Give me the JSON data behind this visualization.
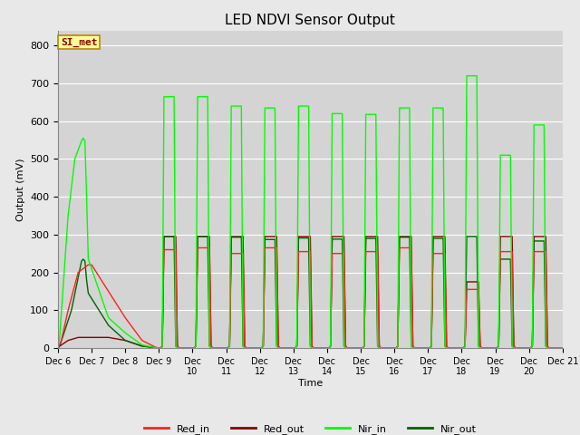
{
  "title": "LED NDVI Sensor Output",
  "xlabel": "Time",
  "ylabel": "Output (mV)",
  "ylim": [
    0,
    840
  ],
  "yticks": [
    0,
    100,
    200,
    300,
    400,
    500,
    600,
    700,
    800
  ],
  "annotation_text": "SI_met",
  "annotation_color": "#8b0000",
  "annotation_bg": "#ffff99",
  "annotation_border": "#b8860b",
  "legend_labels": [
    "Red_in",
    "Red_out",
    "Nir_in",
    "Nir_out"
  ],
  "legend_colors": [
    "#ff2020",
    "#8b0000",
    "#00ff00",
    "#006400"
  ],
  "days": [
    "Dec 6",
    "Dec 7",
    "Dec 8",
    "Dec 9",
    "Dec\n10",
    "Dec\n11",
    "Dec\n12",
    "Dec\n13",
    "Dec\n14",
    "Dec\n15",
    "Dec\n16",
    "Dec\n17",
    "Dec\n18",
    "Dec\n19",
    "Dec\n20",
    "Dec 21"
  ],
  "day_positions": [
    0,
    1,
    2,
    3,
    4,
    5,
    6,
    7,
    8,
    9,
    10,
    11,
    12,
    13,
    14,
    15
  ],
  "series": {
    "Red_in": {
      "color": "#ff2020",
      "lw": 1.0,
      "x": [
        0,
        0.1,
        0.3,
        0.6,
        0.9,
        1.0,
        1.5,
        2.0,
        2.5,
        2.9,
        3.0,
        3.05,
        3.1,
        3.15,
        3.5,
        3.55,
        3.6,
        4.05,
        4.1,
        4.15,
        4.5,
        4.55,
        4.6,
        5.05,
        5.1,
        5.15,
        5.5,
        5.55,
        5.6,
        6.05,
        6.1,
        6.15,
        6.5,
        6.55,
        6.6,
        7.05,
        7.1,
        7.15,
        7.5,
        7.55,
        7.6,
        8.05,
        8.1,
        8.15,
        8.5,
        8.55,
        8.6,
        9.05,
        9.1,
        9.15,
        9.5,
        9.55,
        9.6,
        10.05,
        10.1,
        10.15,
        10.5,
        10.55,
        10.6,
        11.05,
        11.1,
        11.15,
        11.5,
        11.55,
        11.6,
        12.05,
        12.1,
        12.15,
        12.5,
        12.55,
        12.6,
        13.05,
        13.1,
        13.15,
        13.5,
        13.55,
        13.6,
        14.05,
        14.1,
        14.15,
        14.5,
        14.55,
        14.6,
        15.0
      ],
      "y": [
        0,
        20,
        100,
        200,
        220,
        220,
        150,
        80,
        20,
        2,
        0,
        0,
        5,
        260,
        260,
        5,
        0,
        0,
        5,
        265,
        265,
        5,
        0,
        0,
        5,
        250,
        250,
        5,
        0,
        0,
        5,
        265,
        265,
        5,
        0,
        0,
        5,
        255,
        255,
        5,
        0,
        0,
        5,
        250,
        250,
        5,
        0,
        0,
        5,
        255,
        255,
        5,
        0,
        0,
        5,
        265,
        265,
        5,
        0,
        0,
        5,
        250,
        250,
        5,
        0,
        0,
        5,
        155,
        155,
        5,
        0,
        0,
        5,
        255,
        255,
        5,
        0,
        0,
        5,
        255,
        255,
        5,
        0,
        0
      ]
    },
    "Red_out": {
      "color": "#8b0000",
      "lw": 1.0,
      "x": [
        0,
        0.05,
        0.3,
        0.6,
        0.9,
        1.0,
        1.5,
        2.0,
        2.5,
        2.9,
        3.0,
        3.05,
        3.1,
        3.15,
        3.5,
        3.55,
        3.6,
        4.05,
        4.1,
        4.15,
        4.5,
        4.55,
        4.6,
        5.05,
        5.1,
        5.15,
        5.5,
        5.55,
        5.6,
        6.05,
        6.1,
        6.15,
        6.5,
        6.55,
        6.6,
        7.05,
        7.1,
        7.15,
        7.5,
        7.55,
        7.6,
        8.05,
        8.1,
        8.15,
        8.5,
        8.55,
        8.6,
        9.05,
        9.1,
        9.15,
        9.5,
        9.55,
        9.6,
        10.05,
        10.1,
        10.15,
        10.5,
        10.55,
        10.6,
        11.05,
        11.1,
        11.15,
        11.5,
        11.55,
        11.6,
        12.05,
        12.1,
        12.15,
        12.5,
        12.55,
        12.6,
        13.05,
        13.1,
        13.15,
        13.5,
        13.55,
        13.6,
        14.05,
        14.1,
        14.15,
        14.5,
        14.55,
        14.6,
        15.0
      ],
      "y": [
        0,
        5,
        20,
        28,
        28,
        28,
        28,
        20,
        5,
        1,
        0,
        0,
        5,
        295,
        295,
        5,
        0,
        0,
        5,
        295,
        295,
        5,
        0,
        0,
        5,
        295,
        295,
        5,
        0,
        0,
        5,
        295,
        295,
        5,
        0,
        0,
        5,
        295,
        295,
        5,
        0,
        0,
        5,
        295,
        295,
        5,
        0,
        0,
        5,
        295,
        295,
        5,
        0,
        0,
        5,
        295,
        295,
        5,
        0,
        0,
        5,
        295,
        295,
        5,
        0,
        0,
        5,
        175,
        175,
        5,
        0,
        0,
        5,
        295,
        295,
        5,
        0,
        0,
        5,
        295,
        295,
        5,
        0,
        0
      ]
    },
    "Nir_in": {
      "color": "#00ff00",
      "lw": 1.0,
      "x": [
        0,
        0.05,
        0.3,
        0.5,
        0.7,
        0.75,
        0.8,
        0.85,
        0.9,
        1.5,
        2.0,
        2.5,
        2.9,
        3.0,
        3.05,
        3.1,
        3.15,
        3.45,
        3.5,
        3.55,
        3.6,
        4.05,
        4.1,
        4.15,
        4.45,
        4.5,
        4.55,
        4.6,
        5.05,
        5.1,
        5.15,
        5.45,
        5.5,
        5.55,
        5.6,
        6.05,
        6.1,
        6.15,
        6.45,
        6.5,
        6.55,
        6.6,
        7.05,
        7.1,
        7.15,
        7.45,
        7.5,
        7.55,
        7.6,
        8.05,
        8.1,
        8.15,
        8.45,
        8.5,
        8.55,
        8.6,
        9.05,
        9.1,
        9.15,
        9.45,
        9.5,
        9.55,
        9.6,
        10.05,
        10.1,
        10.15,
        10.45,
        10.5,
        10.55,
        10.6,
        11.05,
        11.1,
        11.15,
        11.45,
        11.5,
        11.55,
        11.6,
        12.05,
        12.1,
        12.15,
        12.45,
        12.5,
        12.55,
        12.6,
        13.05,
        13.1,
        13.15,
        13.45,
        13.5,
        13.55,
        13.6,
        14.05,
        14.1,
        14.15,
        14.45,
        14.5,
        14.55,
        14.6,
        15.0
      ],
      "y": [
        0,
        30,
        350,
        500,
        548,
        555,
        548,
        400,
        235,
        80,
        40,
        8,
        1,
        0,
        0,
        5,
        665,
        665,
        5,
        1,
        0,
        0,
        5,
        665,
        665,
        5,
        1,
        0,
        0,
        5,
        640,
        640,
        5,
        1,
        0,
        0,
        5,
        635,
        635,
        5,
        1,
        0,
        0,
        5,
        640,
        640,
        5,
        1,
        0,
        0,
        5,
        620,
        620,
        5,
        1,
        0,
        0,
        5,
        618,
        618,
        5,
        1,
        0,
        0,
        5,
        635,
        635,
        5,
        1,
        0,
        0,
        5,
        635,
        635,
        5,
        1,
        0,
        0,
        5,
        720,
        720,
        5,
        1,
        0,
        0,
        5,
        510,
        510,
        5,
        1,
        0,
        0,
        5,
        590,
        590,
        5,
        1,
        0,
        0
      ]
    },
    "Nir_out": {
      "color": "#006400",
      "lw": 1.0,
      "x": [
        0,
        0.05,
        0.4,
        0.7,
        0.75,
        0.8,
        0.85,
        0.9,
        1.5,
        2.0,
        2.5,
        2.9,
        3.0,
        3.05,
        3.1,
        3.15,
        3.45,
        3.5,
        3.55,
        3.6,
        4.05,
        4.1,
        4.15,
        4.45,
        4.5,
        4.55,
        4.6,
        5.05,
        5.1,
        5.15,
        5.45,
        5.5,
        5.55,
        5.6,
        6.05,
        6.1,
        6.15,
        6.45,
        6.5,
        6.55,
        6.6,
        7.05,
        7.1,
        7.15,
        7.45,
        7.5,
        7.55,
        7.6,
        8.05,
        8.1,
        8.15,
        8.45,
        8.5,
        8.55,
        8.6,
        9.05,
        9.1,
        9.15,
        9.45,
        9.5,
        9.55,
        9.6,
        10.05,
        10.1,
        10.15,
        10.45,
        10.5,
        10.55,
        10.6,
        11.05,
        11.1,
        11.15,
        11.45,
        11.5,
        11.55,
        11.6,
        12.05,
        12.1,
        12.15,
        12.45,
        12.5,
        12.55,
        12.6,
        13.05,
        13.1,
        13.15,
        13.45,
        13.5,
        13.55,
        13.6,
        14.05,
        14.1,
        14.15,
        14.45,
        14.5,
        14.55,
        14.6,
        15.0
      ],
      "y": [
        0,
        5,
        100,
        230,
        235,
        230,
        180,
        145,
        60,
        20,
        5,
        1,
        0,
        0,
        5,
        295,
        295,
        5,
        1,
        0,
        0,
        5,
        295,
        295,
        5,
        1,
        0,
        0,
        5,
        293,
        293,
        5,
        1,
        0,
        0,
        5,
        287,
        287,
        5,
        1,
        0,
        0,
        5,
        291,
        291,
        5,
        1,
        0,
        0,
        5,
        288,
        288,
        5,
        1,
        0,
        0,
        5,
        290,
        290,
        5,
        1,
        0,
        0,
        5,
        293,
        293,
        5,
        1,
        0,
        0,
        5,
        290,
        290,
        5,
        1,
        0,
        0,
        5,
        295,
        295,
        5,
        1,
        0,
        0,
        5,
        235,
        235,
        5,
        1,
        0,
        0,
        5,
        283,
        283,
        5,
        1,
        0,
        0
      ]
    }
  }
}
